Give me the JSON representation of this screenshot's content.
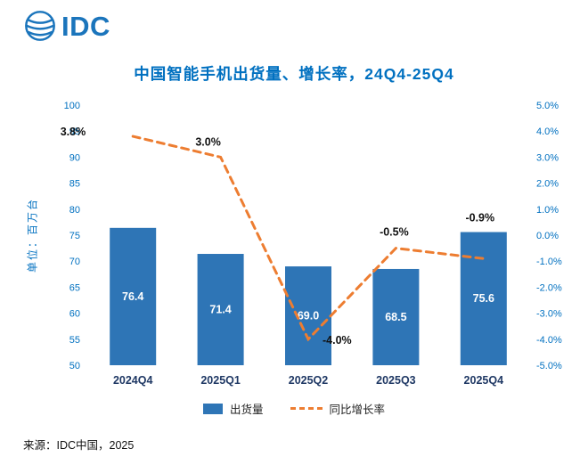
{
  "logo": {
    "text": "IDC"
  },
  "title": "中国智能手机出货量、增长率，24Q4-25Q4",
  "ylabel_left": "单位：百万台",
  "chart_data": {
    "type": "bar+line",
    "categories": [
      "2024Q4",
      "2025Q1",
      "2025Q2",
      "2025Q3",
      "2025Q4"
    ],
    "series": [
      {
        "name": "出货量",
        "type": "bar",
        "axis": "left",
        "color": "#2E75B6",
        "values": [
          76.4,
          71.4,
          69.0,
          68.5,
          75.6
        ]
      },
      {
        "name": "同比增长率",
        "type": "line",
        "axis": "right",
        "color": "#ED7D31",
        "dashed": true,
        "values": [
          3.8,
          3.0,
          -4.0,
          -0.5,
          -0.9
        ]
      }
    ],
    "bar_value_labels": [
      "76.4",
      "71.4",
      "69.0",
      "68.5",
      "75.6"
    ],
    "growth_labels": [
      "3.8%",
      "3.0%",
      "-4.0%",
      "-0.5%",
      "-0.9%"
    ],
    "left_axis": {
      "min": 50,
      "max": 100,
      "step": 5,
      "label": "单位：百万台"
    },
    "right_axis": {
      "min": -5,
      "max": 5,
      "step": 1,
      "suffix": "%"
    },
    "grid": false,
    "legend_position": "bottom"
  },
  "legend": {
    "items": [
      {
        "label": "出货量",
        "type": "bar"
      },
      {
        "label": "同比增长率",
        "type": "line"
      }
    ]
  },
  "source": "来源：IDC中国，2025",
  "colors": {
    "bar": "#2E75B6",
    "line": "#ED7D31",
    "title": "#0070C0",
    "axis_ticks": "#0070C0",
    "x_labels": "#1F3864",
    "logo": "#1B75BC"
  }
}
